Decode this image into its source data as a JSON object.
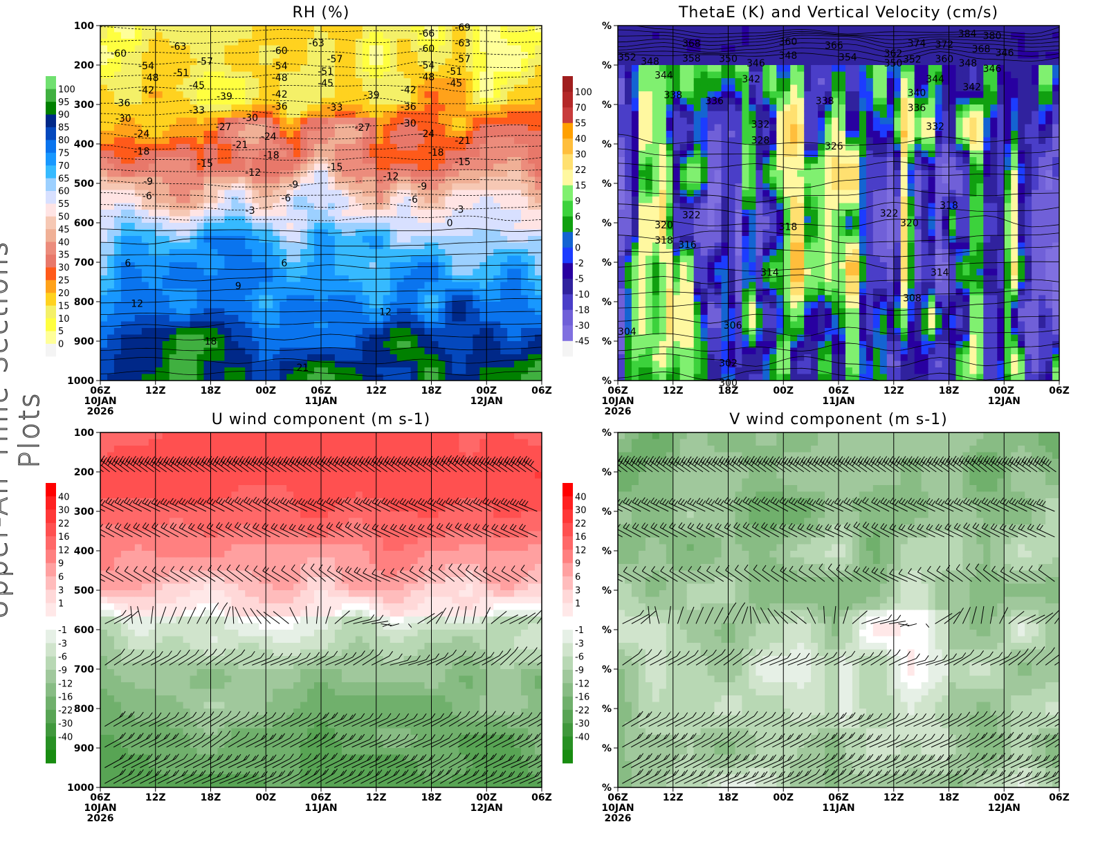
{
  "side_title": "Upper-Air Time Sections Plots",
  "x_ticks": {
    "hours": [
      0,
      6,
      12,
      18,
      24,
      30,
      36,
      42,
      48
    ],
    "labels": [
      "06Z",
      "12Z",
      "18Z",
      "00Z",
      "06Z",
      "12Z",
      "18Z",
      "00Z",
      "06Z"
    ],
    "date_labels": [
      {
        "hour": 0,
        "text": "10JAN"
      },
      {
        "hour": 24,
        "text": "11JAN"
      },
      {
        "hour": 42,
        "text": "12JAN"
      }
    ],
    "year_label": {
      "hour": 0,
      "text": "2026"
    }
  },
  "chart_data": [
    {
      "type": "heatmap",
      "title": "RH (%)",
      "ylim": [
        1000,
        100
      ],
      "y_ticks": [
        "100",
        "200",
        "300",
        "400",
        "500",
        "600",
        "700",
        "800",
        "900",
        "1000"
      ],
      "colorbar": {
        "labels": [
          "0",
          "5",
          "10",
          "15",
          "20",
          "25",
          "30",
          "35",
          "40",
          "45",
          "50",
          "55",
          "60",
          "65",
          "70",
          "75",
          "80",
          "85",
          "90",
          "95",
          "100"
        ],
        "colors": [
          "#f4f4f4",
          "#ffff99",
          "#ffff40",
          "#f4f068",
          "#ffd21f",
          "#ffa21a",
          "#ff5a1a",
          "#e8786a",
          "#ec8c7c",
          "#f0b096",
          "#f6c8b4",
          "#ffe4e4",
          "#d8e0ff",
          "#9cd0ff",
          "#36baff",
          "#1898ff",
          "#0a74ee",
          "#0448bd",
          "#002888",
          "#008000",
          "#40b040",
          "#70e070"
        ]
      },
      "contour_field": "temperature (dashed/solid)",
      "contour_labels": [
        [
          2,
          170,
          "-60"
        ],
        [
          8.5,
          153,
          "-63"
        ],
        [
          11.4,
          190,
          "-57"
        ],
        [
          5,
          202,
          "-54"
        ],
        [
          10,
          219,
          "-51"
        ],
        [
          5.5,
          232,
          "-48"
        ],
        [
          10.5,
          251,
          "-45"
        ],
        [
          5,
          263,
          "-42"
        ],
        [
          13.5,
          279,
          "-39"
        ],
        [
          2.4,
          296,
          "-36"
        ],
        [
          10.5,
          314,
          "-33"
        ],
        [
          2.5,
          335,
          "-30"
        ],
        [
          16.3,
          333,
          "-30"
        ],
        [
          13.4,
          356,
          "-27"
        ],
        [
          4.5,
          374,
          "-24"
        ],
        [
          18.3,
          381,
          "-24"
        ],
        [
          15.2,
          402,
          "-21"
        ],
        [
          4.5,
          418,
          "-18"
        ],
        [
          18.6,
          428,
          "-18"
        ],
        [
          11.4,
          449,
          "-15"
        ],
        [
          16.6,
          472,
          "-12"
        ],
        [
          5.2,
          495,
          "-9"
        ],
        [
          21,
          503,
          "-9"
        ],
        [
          5.1,
          532,
          "-6"
        ],
        [
          20.2,
          537,
          "-6"
        ],
        [
          16.3,
          568,
          "-3"
        ],
        [
          38,
          600,
          "0"
        ],
        [
          3,
          702,
          "6"
        ],
        [
          20,
          702,
          "6"
        ],
        [
          15,
          760,
          "9"
        ],
        [
          4,
          804,
          "12"
        ],
        [
          31,
          825,
          "12"
        ],
        [
          12,
          900,
          "18"
        ],
        [
          22,
          967,
          "21"
        ],
        [
          19.5,
          163,
          "-60"
        ],
        [
          19.5,
          202,
          "-54"
        ],
        [
          19.5,
          232,
          "-48"
        ],
        [
          19.5,
          260,
          "-42"
        ],
        [
          19.5,
          290,
          "-36"
        ],
        [
          23.5,
          144,
          "-63"
        ],
        [
          25.5,
          184,
          "-57"
        ],
        [
          24.5,
          216,
          "-51"
        ],
        [
          24.5,
          246,
          "-45"
        ],
        [
          25.5,
          307,
          "-33"
        ],
        [
          28.5,
          358,
          "-27"
        ],
        [
          25.5,
          458,
          "-15"
        ],
        [
          31.6,
          482,
          "-12"
        ],
        [
          29.5,
          275,
          "-39"
        ],
        [
          35.5,
          119,
          "-66"
        ],
        [
          35.5,
          158,
          "-60"
        ],
        [
          35.5,
          200,
          "-54"
        ],
        [
          35.5,
          230,
          "-48"
        ],
        [
          33.5,
          262,
          "-42"
        ],
        [
          33.5,
          291,
          "-36"
        ],
        [
          33.5,
          333,
          "-30"
        ],
        [
          35.5,
          374,
          "-24"
        ],
        [
          36.5,
          421,
          "-18"
        ],
        [
          35,
          507,
          "-9"
        ],
        [
          34,
          540,
          "-6"
        ],
        [
          39.4,
          104,
          "-69"
        ],
        [
          39.4,
          144,
          "-63"
        ],
        [
          39.4,
          184,
          "-57"
        ],
        [
          38.5,
          216,
          "-51"
        ],
        [
          38.5,
          246,
          "-45"
        ],
        [
          39.4,
          391,
          "-21"
        ],
        [
          39.4,
          445,
          "-15"
        ],
        [
          39,
          566,
          "-3"
        ]
      ]
    },
    {
      "type": "heatmap",
      "title": "ThetaE (K) and Vertical Velocity (cm/s)",
      "ylim": [
        1000,
        100
      ],
      "y_ticks": [
        "%",
        "%",
        "%",
        "%",
        "%",
        "%",
        "%",
        "%",
        "%",
        "%"
      ],
      "colorbar": {
        "labels": [
          "-45",
          "-30",
          "-18",
          "-10",
          "-5",
          "-2",
          "0",
          "2",
          "6",
          "9",
          "15",
          "22",
          "30",
          "40",
          "55",
          "70",
          "100"
        ],
        "colors": [
          "#f4f4f4",
          "#8070e0",
          "#7060d8",
          "#4a3ec8",
          "#30229e",
          "#2800a0",
          "#1c3cff",
          "#1464d2",
          "#10a010",
          "#3cd23c",
          "#80f070",
          "#fff8a0",
          "#ffe070",
          "#ffbe3c",
          "#ffa000",
          "#c83c3c",
          "#b42828",
          "#a01e1e"
        ]
      },
      "contour_field": "ThetaE (K)",
      "contour_labels": [
        [
          1,
          180,
          "352"
        ],
        [
          3.5,
          190,
          "348"
        ],
        [
          8,
          145,
          "368"
        ],
        [
          8,
          168,
          "358"
        ],
        [
          5,
          225,
          "344"
        ],
        [
          6,
          275,
          "338"
        ],
        [
          10.5,
          290,
          "336"
        ],
        [
          12,
          183,
          "350"
        ],
        [
          15,
          195,
          "346"
        ],
        [
          14.5,
          235,
          "342"
        ],
        [
          15.5,
          350,
          "332"
        ],
        [
          15.5,
          390,
          "328"
        ],
        [
          18.5,
          140,
          "360"
        ],
        [
          18.5,
          175,
          "348"
        ],
        [
          23.5,
          150,
          "366"
        ],
        [
          25,
          180,
          "354"
        ],
        [
          32,
          185,
          "352"
        ],
        [
          22.5,
          290,
          "338"
        ],
        [
          23.5,
          405,
          "326"
        ],
        [
          8,
          580,
          "322"
        ],
        [
          5,
          605,
          "320"
        ],
        [
          5,
          630,
          "318"
        ],
        [
          5,
          655,
          "316"
        ],
        [
          18.5,
          610,
          "318"
        ],
        [
          16.5,
          725,
          "314"
        ],
        [
          29.5,
          575,
          "322"
        ],
        [
          30.5,
          600,
          "320"
        ],
        [
          32,
          790,
          "308"
        ],
        [
          12.5,
          860,
          "306"
        ],
        [
          1,
          875,
          "304"
        ],
        [
          12,
          955,
          "302"
        ],
        [
          12,
          1005,
          "300"
        ],
        [
          36,
          555,
          "318"
        ],
        [
          35,
          725,
          "314"
        ],
        [
          32.5,
          145,
          "374"
        ],
        [
          35.5,
          147,
          "372"
        ],
        [
          32.5,
          170,
          "362"
        ],
        [
          35.5,
          170,
          "360"
        ],
        [
          32.5,
          195,
          "350"
        ],
        [
          35.5,
          195,
          "348"
        ],
        [
          38,
          120,
          "384"
        ],
        [
          39.5,
          125,
          "380"
        ],
        [
          39.5,
          145,
          "368"
        ],
        [
          39.5,
          168,
          "346"
        ],
        [
          39.5,
          195,
          "346"
        ],
        [
          34.5,
          235,
          "344"
        ],
        [
          38.5,
          255,
          "342"
        ],
        [
          32.5,
          270,
          "340"
        ],
        [
          32.5,
          308,
          "336"
        ],
        [
          34.5,
          355,
          "332"
        ]
      ]
    },
    {
      "type": "heatmap",
      "title": "U wind component (m s-1)",
      "ylim": [
        1000,
        100
      ],
      "y_ticks": [
        "100",
        "200",
        "300",
        "400",
        "500",
        "600",
        "700",
        "800",
        "900",
        "1000"
      ],
      "colorbar": {
        "labels": [
          "40",
          "30",
          "22",
          "16",
          "12",
          "9",
          "6",
          "3",
          "1",
          "-1",
          "-3",
          "-6",
          "-9",
          "-12",
          "-16",
          "-22",
          "-30",
          "-40"
        ],
        "colors_top_to_bottom": [
          "#ff0000",
          "#ff2020",
          "#ff3838",
          "#ff5050",
          "#ff6868",
          "#ff8080",
          "#ffa0a0",
          "#ffbcbc",
          "#ffd8d8",
          "#ffe8e8",
          "#ffffff",
          "#e6f0e6",
          "#d0e4cc",
          "#b8d8b4",
          "#a0c89c",
          "#88bc84",
          "#70b06c",
          "#58a454",
          "#40983c",
          "#289024",
          "#188c10"
        ]
      },
      "wind_barbs": true
    },
    {
      "type": "heatmap",
      "title": "V wind component (m s-1)",
      "ylim": [
        1000,
        100
      ],
      "y_ticks": [
        "%",
        "%",
        "%",
        "%",
        "%",
        "%",
        "%",
        "%",
        "%",
        "%"
      ],
      "colorbar": {
        "labels": [
          "40",
          "30",
          "22",
          "16",
          "12",
          "9",
          "6",
          "3",
          "1",
          "-1",
          "-3",
          "-6",
          "-9",
          "-12",
          "-16",
          "-22",
          "-30",
          "-40"
        ],
        "colors_top_to_bottom": [
          "#ff0000",
          "#ff2020",
          "#ff3838",
          "#ff5050",
          "#ff6868",
          "#ff8080",
          "#ffa0a0",
          "#ffbcbc",
          "#ffd8d8",
          "#ffe8e8",
          "#ffffff",
          "#e6f0e6",
          "#d0e4cc",
          "#b8d8b4",
          "#a0c89c",
          "#88bc84",
          "#70b06c",
          "#58a454",
          "#40983c",
          "#289024",
          "#188c10"
        ]
      },
      "wind_barbs": true
    }
  ]
}
